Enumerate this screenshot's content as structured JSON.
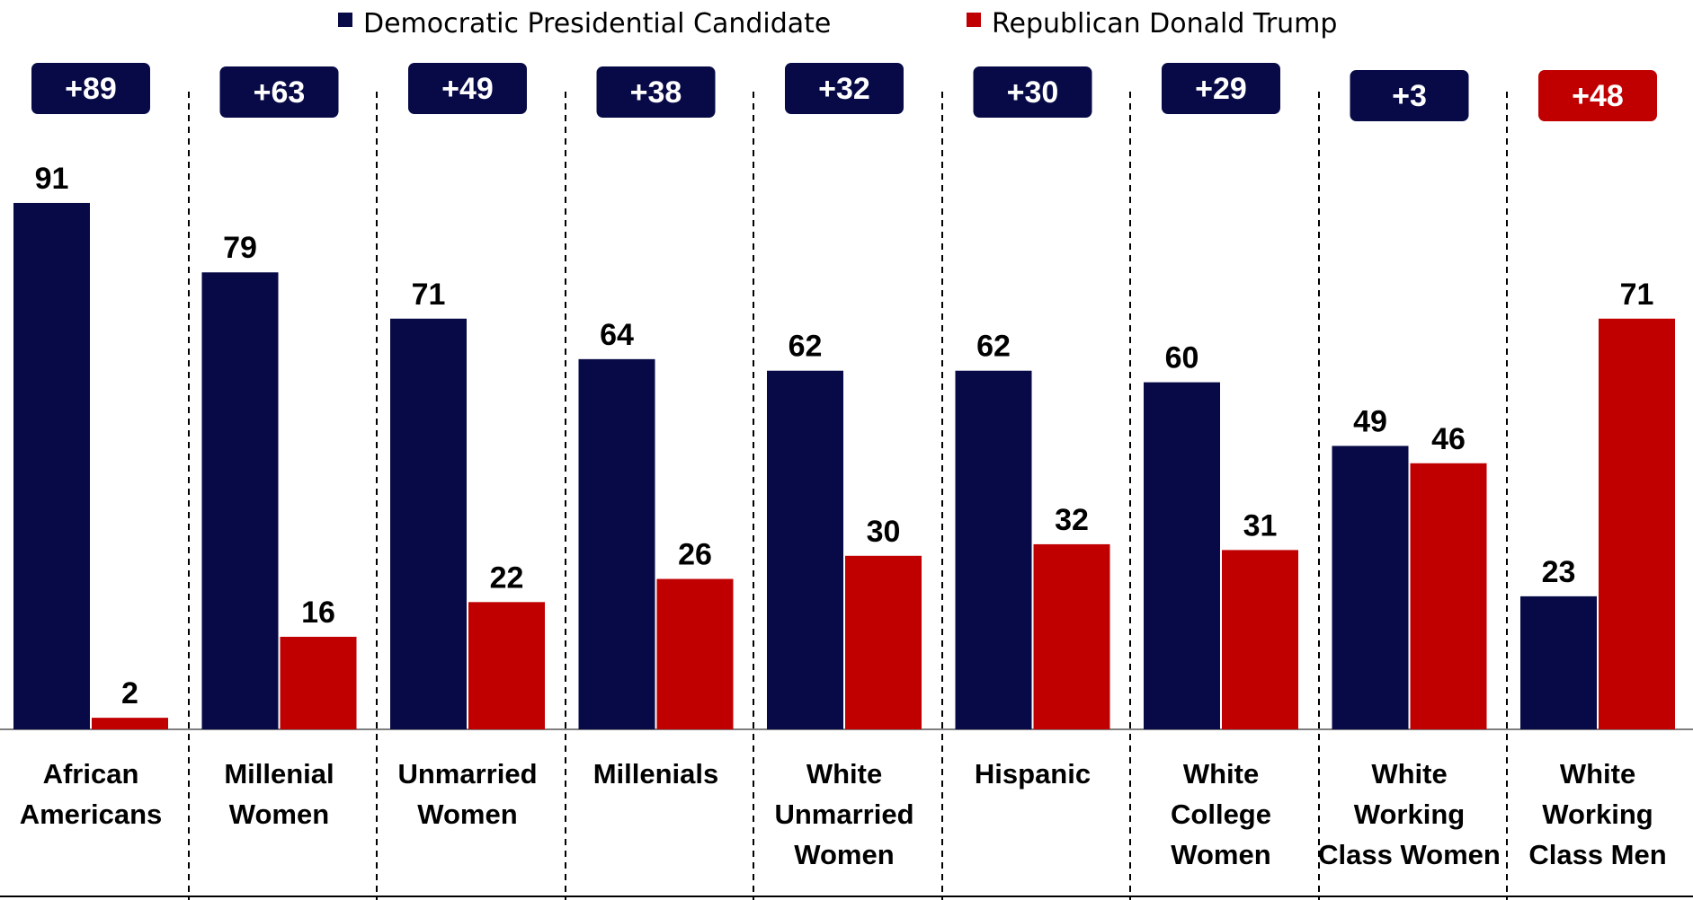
{
  "colors": {
    "democratic": "#070A46",
    "republican": "#C00000",
    "axis": "#7F7F7F",
    "divider": "#000000"
  },
  "chart_data": {
    "type": "bar",
    "categories": [
      [
        "African",
        "Americans"
      ],
      [
        "Millenial",
        "Women"
      ],
      [
        "Unmarried",
        "Women"
      ],
      [
        "Millenials"
      ],
      [
        "White",
        "Unmarried",
        "Women"
      ],
      [
        "Hispanic"
      ],
      [
        "White",
        "College",
        "Women"
      ],
      [
        "White",
        "Working",
        "Class Women"
      ],
      [
        "White",
        "Working",
        "Class Men"
      ]
    ],
    "series": [
      {
        "name": "Democratic Presidential Candidate",
        "values": [
          91,
          79,
          71,
          64,
          62,
          62,
          60,
          49,
          23
        ]
      },
      {
        "name": "Republican Donald Trump",
        "values": [
          2,
          16,
          22,
          26,
          30,
          32,
          31,
          46,
          71
        ]
      }
    ],
    "margins": [
      {
        "label": "+89",
        "party": "democratic"
      },
      {
        "label": "+63",
        "party": "democratic"
      },
      {
        "label": "+49",
        "party": "democratic"
      },
      {
        "label": "+38",
        "party": "democratic"
      },
      {
        "label": "+32",
        "party": "democratic"
      },
      {
        "label": "+30",
        "party": "democratic"
      },
      {
        "label": "+29",
        "party": "democratic"
      },
      {
        "label": "+3",
        "party": "democratic"
      },
      {
        "label": "+48",
        "party": "republican"
      }
    ],
    "ylim": [
      0,
      100
    ],
    "legend_position": "top-center",
    "grid": false
  }
}
